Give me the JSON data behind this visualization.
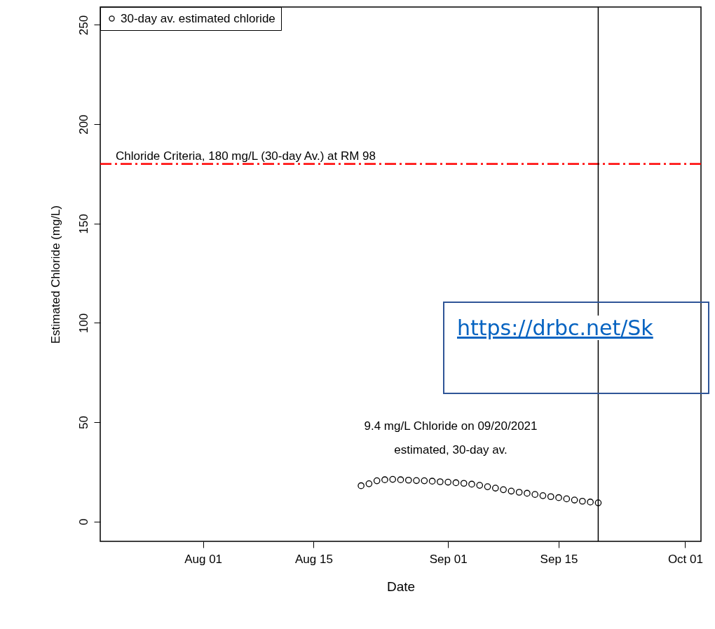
{
  "chart_data": {
    "type": "scatter",
    "xlabel": "Date",
    "ylabel": "Estimated Chloride (mg/L)",
    "x": [
      "2021-08-21",
      "2021-08-22",
      "2021-08-23",
      "2021-08-24",
      "2021-08-25",
      "2021-08-26",
      "2021-08-27",
      "2021-08-28",
      "2021-08-29",
      "2021-08-30",
      "2021-08-31",
      "2021-09-01",
      "2021-09-02",
      "2021-09-03",
      "2021-09-04",
      "2021-09-05",
      "2021-09-06",
      "2021-09-07",
      "2021-09-08",
      "2021-09-09",
      "2021-09-10",
      "2021-09-11",
      "2021-09-12",
      "2021-09-13",
      "2021-09-14",
      "2021-09-15",
      "2021-09-16",
      "2021-09-17",
      "2021-09-18",
      "2021-09-19",
      "2021-09-20"
    ],
    "series": [
      {
        "name": "30-day av. estimated chloride",
        "color": "#000000",
        "values": [
          18,
          19,
          20.5,
          21,
          21.2,
          21,
          20.8,
          20.6,
          20.5,
          20.3,
          20,
          19.8,
          19.5,
          19.2,
          18.8,
          18.2,
          17.5,
          16.8,
          16,
          15.3,
          14.7,
          14.2,
          13.6,
          13,
          12.5,
          12,
          11.4,
          10.8,
          10.2,
          9.8,
          9.4
        ]
      }
    ],
    "marker": "circle",
    "legend": "top left",
    "grid": false,
    "xlim": [
      "2021-07-19",
      "2021-10-03"
    ],
    "xticks": [
      {
        "value": "2021-08-01",
        "label": "Aug 01"
      },
      {
        "value": "2021-08-15",
        "label": "Aug 15"
      },
      {
        "value": "2021-09-01",
        "label": "Sep 01"
      },
      {
        "value": "2021-09-15",
        "label": "Sep 15"
      },
      {
        "value": "2021-10-01",
        "label": "Oct 01"
      }
    ],
    "ylim": [
      -10,
      259
    ],
    "yticks": [
      0,
      50,
      100,
      150,
      200,
      250
    ],
    "ref_lines": [
      {
        "axis": "y",
        "value": 180,
        "label": "Chloride Criteria, 180 mg/L (30-day Av.) at RM 98",
        "color": "#ff0000",
        "line_style": "dashdot"
      },
      {
        "axis": "x",
        "value": "2021-09-20",
        "label": null,
        "color": "#000000",
        "line_style": "solid"
      }
    ],
    "annotations": [
      "9.4 mg/L Chloride on 09/20/2021\nestimated, 30-day av.",
      "https://drbc.net/Sk"
    ]
  }
}
